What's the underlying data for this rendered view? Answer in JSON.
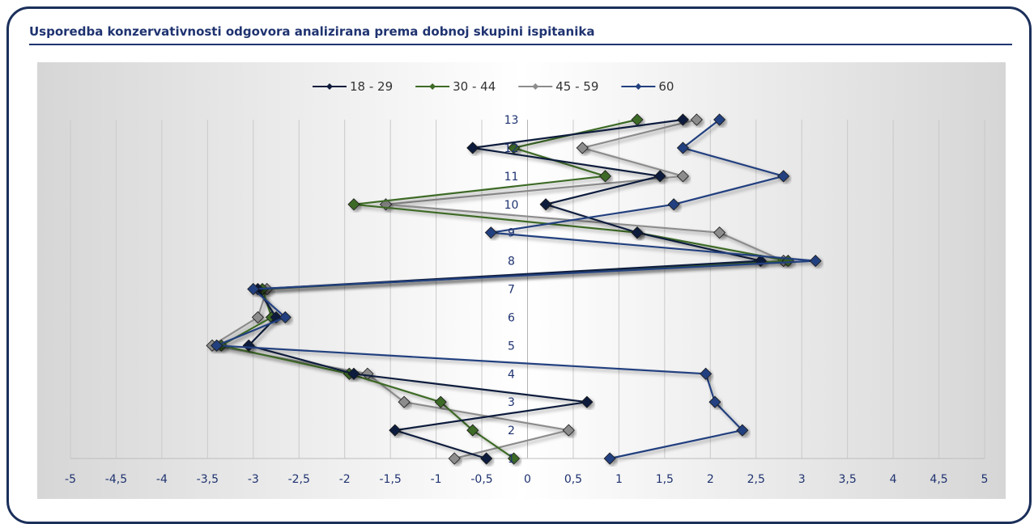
{
  "chart_data": {
    "type": "scatter",
    "title": "Usporedba konzervativnosti odgovora analizirana prema dobnoj skupini ispitanika",
    "xlabel": "",
    "ylabel": "",
    "xlim": [
      -5,
      5
    ],
    "ylim": [
      1,
      13
    ],
    "x_ticks": [
      "-5",
      "-4,5",
      "-4",
      "-3,5",
      "-3",
      "-2,5",
      "-2",
      "-1,5",
      "-1",
      "-0,5",
      "0",
      "0,5",
      "1",
      "1,5",
      "2",
      "2,5",
      "3",
      "3,5",
      "4",
      "4,5",
      "5"
    ],
    "y_ticks": [
      "1",
      "2",
      "3",
      "4",
      "5",
      "6",
      "7",
      "8",
      "9",
      "10",
      "11",
      "12",
      "13"
    ],
    "grid": "vertical",
    "legend": "top",
    "colors": {
      "18 - 29": "#101d3d",
      "30 - 44": "#3e6b25",
      "45 - 59": "#8c8c8c",
      "60": "#23407f"
    },
    "series": [
      {
        "name": "18 - 29",
        "x": [
          -0.45,
          -1.45,
          0.65,
          -1.9,
          -3.05,
          -2.75,
          -2.95,
          2.55,
          1.2,
          0.2,
          1.45,
          -0.6,
          1.7
        ],
        "y": [
          1,
          2,
          3,
          4,
          5,
          6,
          7,
          8,
          9,
          10,
          11,
          12,
          13
        ]
      },
      {
        "name": "30 - 44",
        "x": [
          -0.15,
          -0.6,
          -0.95,
          -1.95,
          -3.35,
          -2.8,
          -2.9,
          2.85,
          1.2,
          -1.9,
          0.85,
          -0.15,
          1.2
        ],
        "y": [
          1,
          2,
          3,
          4,
          5,
          6,
          7,
          8,
          9,
          10,
          11,
          12,
          13
        ]
      },
      {
        "name": "45 - 59",
        "x": [
          -0.8,
          0.45,
          -1.35,
          -1.75,
          -3.45,
          -2.95,
          -2.85,
          2.8,
          2.1,
          -1.55,
          1.7,
          0.6,
          1.85
        ],
        "y": [
          1,
          2,
          3,
          4,
          5,
          6,
          7,
          8,
          9,
          10,
          11,
          12,
          13
        ]
      },
      {
        "name": "60",
        "x": [
          0.9,
          2.35,
          2.05,
          1.95,
          -3.4,
          -2.65,
          -3.0,
          3.15,
          -0.4,
          1.6,
          2.8,
          1.7,
          2.1
        ],
        "y": [
          1,
          2,
          3,
          4,
          5,
          6,
          7,
          8,
          9,
          10,
          11,
          12,
          13
        ]
      }
    ]
  }
}
